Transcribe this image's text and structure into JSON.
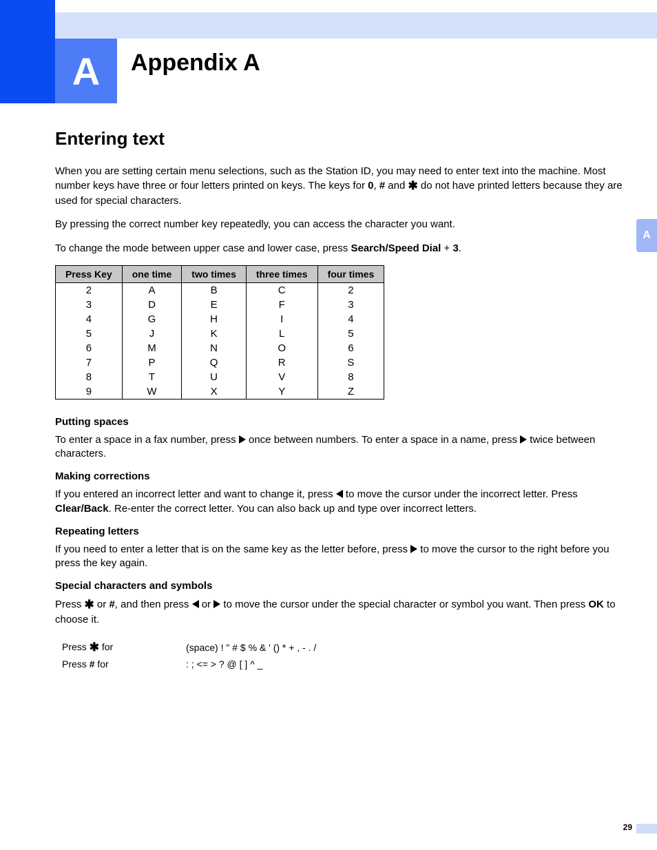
{
  "header": {
    "letter": "A",
    "title": "Appendix A",
    "side_tab": "A"
  },
  "section_title": "Entering text",
  "intro": {
    "p1_a": "When you are setting certain menu selections, such as the Station ID, you may need to enter text into the machine. Most number keys have three or four letters printed on keys. The keys for ",
    "p1_b": "0",
    "p1_c": ", ",
    "p1_d": "#",
    "p1_e": " and ",
    "p1_f": " do not have printed letters because they are used for special characters.",
    "p2": "By pressing the correct number key repeatedly, you can access the character you want.",
    "p3_a": "To change the mode between upper case and lower case, press ",
    "p3_b": "Search/Speed Dial",
    "p3_c": " + ",
    "p3_d": "3",
    "p3_e": "."
  },
  "table": {
    "headers": [
      "Press Key",
      "one time",
      "two times",
      "three times",
      "four times"
    ],
    "rows": [
      [
        "2",
        "A",
        "B",
        "C",
        "2"
      ],
      [
        "3",
        "D",
        "E",
        "F",
        "3"
      ],
      [
        "4",
        "G",
        "H",
        "I",
        "4"
      ],
      [
        "5",
        "J",
        "K",
        "L",
        "5"
      ],
      [
        "6",
        "M",
        "N",
        "O",
        "6"
      ],
      [
        "7",
        "P",
        "Q",
        "R",
        "S"
      ],
      [
        "8",
        "T",
        "U",
        "V",
        "8"
      ],
      [
        "9",
        "W",
        "X",
        "Y",
        "Z"
      ]
    ]
  },
  "spaces": {
    "head": "Putting spaces",
    "a": "To enter a space in a fax number, press ",
    "b": " once between numbers. To enter a space in a name, press ",
    "c": " twice between characters."
  },
  "corrections": {
    "head": "Making corrections",
    "a": "If you entered an incorrect letter and want to change it, press ",
    "b": " to move the cursor under the incorrect letter. Press ",
    "clear": "Clear/Back",
    "c": ". Re-enter the correct letter. You can also back up and type over incorrect letters."
  },
  "repeating": {
    "head": "Repeating letters",
    "a": "If you need to enter a letter that is on the same key as the letter before, press ",
    "b": " to move the cursor to the right before you press the key again."
  },
  "special": {
    "head": "Special characters and symbols",
    "a": "Press ",
    "b": " or ",
    "hash": "#",
    "c": ", and then press ",
    "d": " or ",
    "e": " to move the cursor under the special character or symbol you want. Then press ",
    "ok": "OK",
    "f": " to choose it.",
    "row1_label_a": "Press ",
    "row1_label_b": " for",
    "row1_chars": "(space) ! \" # $ % & ' () * + , - . /",
    "row2_label_a": "Press ",
    "row2_hash": "#",
    "row2_label_b": " for",
    "row2_chars": ": ; <= > ? @ [ ] ^ _"
  },
  "page_number": "29",
  "colors": {
    "deep_blue": "#0b4cf2",
    "mid_blue": "#4d7cf6",
    "light_blue": "#d5e0fb",
    "tab_blue": "#9fb8f5",
    "header_gray": "#c8c8c8"
  }
}
